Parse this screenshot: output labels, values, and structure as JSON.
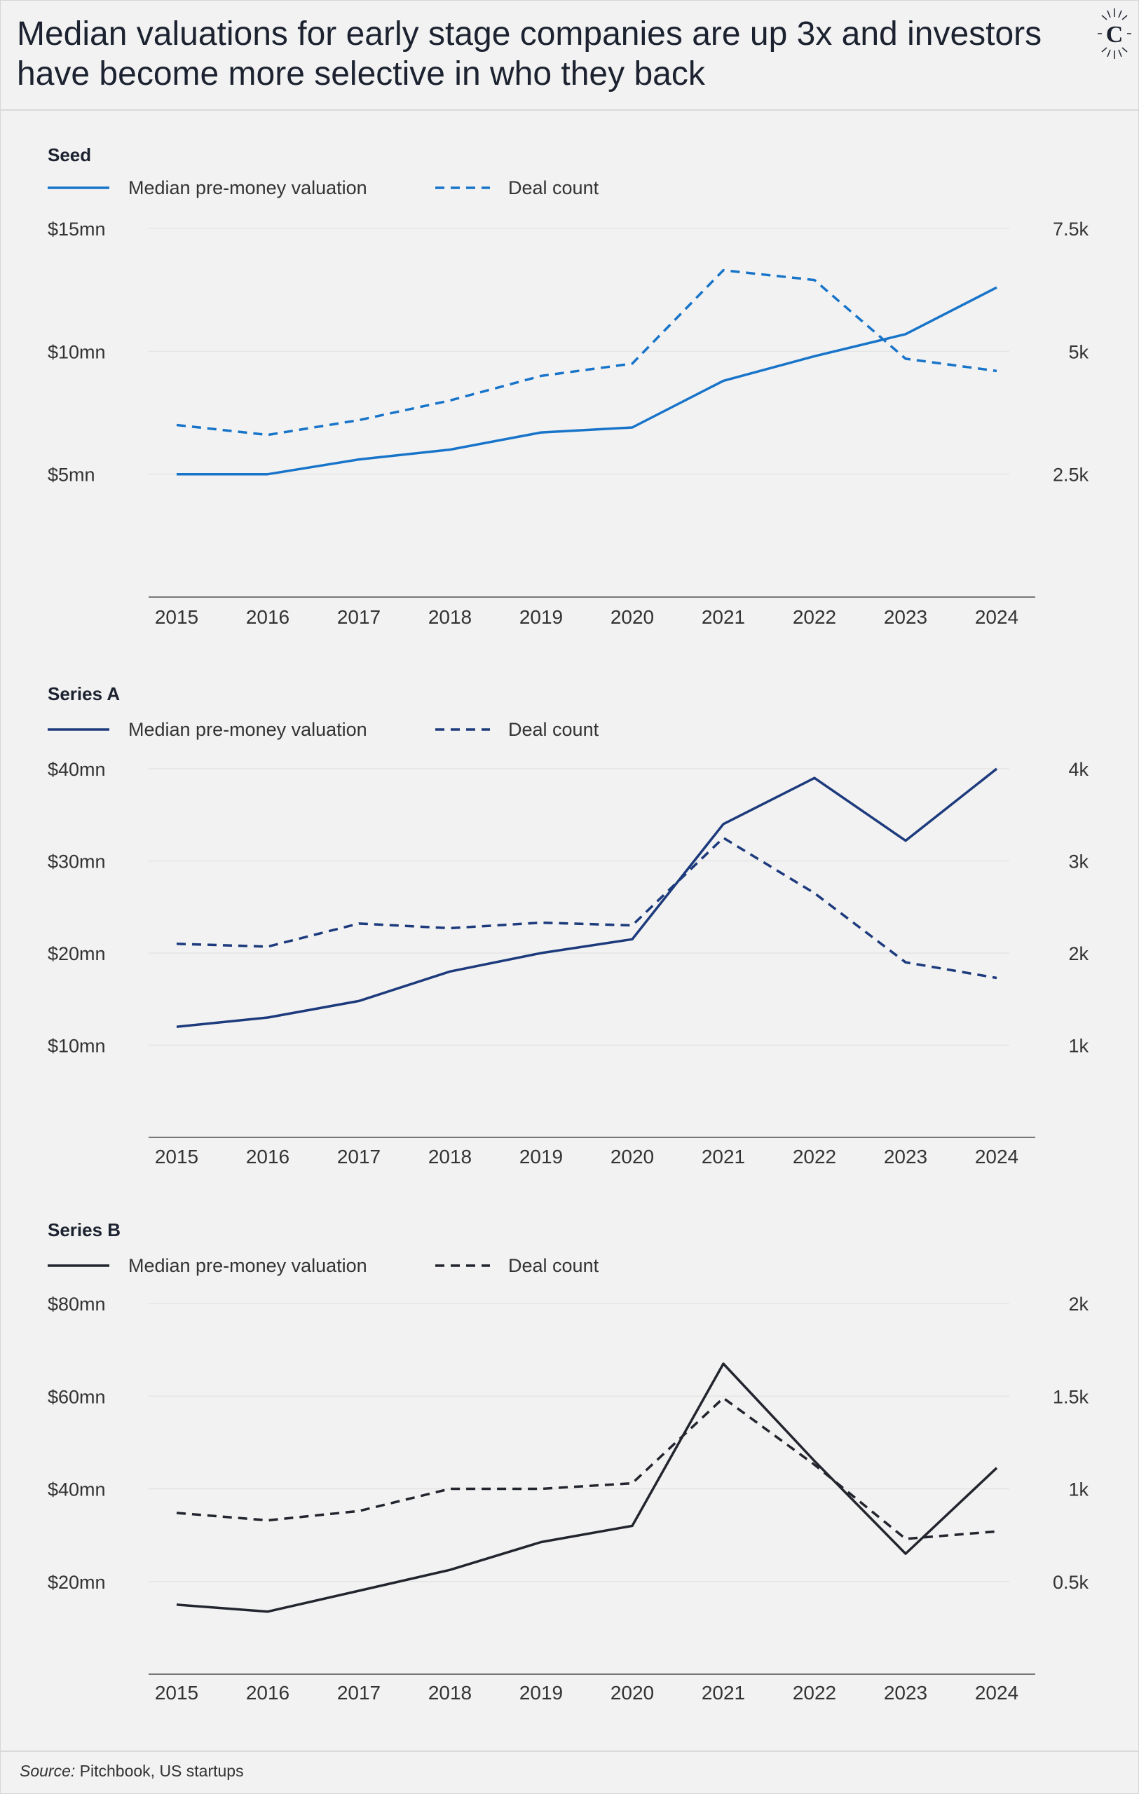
{
  "title": "Median valuations for early stage companies are up 3x and investors have become more selective in who they back",
  "source_label": "Source:",
  "source_text": " Pitchbook, US startups",
  "logo_letter": "C",
  "chart_data": [
    {
      "type": "line",
      "title": "Seed",
      "color": "#1874c9",
      "categories": [
        "2015",
        "2016",
        "2017",
        "2018",
        "2019",
        "2020",
        "2021",
        "2022",
        "2023",
        "2024"
      ],
      "legend": [
        "Median pre-money valuation",
        "Deal count"
      ],
      "y_left": {
        "min": 0,
        "max": 15,
        "ticks": [
          5,
          10,
          15
        ],
        "tick_labels": [
          "$5mn",
          "$10mn",
          "$15mn"
        ]
      },
      "y_right": {
        "min": 0,
        "max": 7500,
        "ticks": [
          2500,
          5000,
          7500
        ],
        "tick_labels": [
          "2.5k",
          "5k",
          "7.5k"
        ]
      },
      "series": [
        {
          "name": "Median pre-money valuation",
          "axis": "left",
          "style": "solid",
          "values": [
            5.0,
            5.0,
            5.6,
            6.0,
            6.7,
            6.9,
            8.8,
            9.8,
            10.7,
            12.6
          ]
        },
        {
          "name": "Deal count",
          "axis": "right",
          "style": "dashed",
          "values": [
            3500,
            3300,
            3600,
            4000,
            4500,
            4750,
            6650,
            6450,
            4850,
            4600
          ]
        }
      ]
    },
    {
      "type": "line",
      "title": "Series A",
      "color": "#1c3a7c",
      "categories": [
        "2015",
        "2016",
        "2017",
        "2018",
        "2019",
        "2020",
        "2021",
        "2022",
        "2023",
        "2024"
      ],
      "legend": [
        "Median pre-money valuation",
        "Deal count"
      ],
      "y_left": {
        "min": 0,
        "max": 40,
        "ticks": [
          10,
          20,
          30,
          40
        ],
        "tick_labels": [
          "$10mn",
          "$20mn",
          "$30mn",
          "$40mn"
        ]
      },
      "y_right": {
        "min": 0,
        "max": 4000,
        "ticks": [
          1000,
          2000,
          3000,
          4000
        ],
        "tick_labels": [
          "1k",
          "2k",
          "3k",
          "4k"
        ]
      },
      "series": [
        {
          "name": "Median pre-money valuation",
          "axis": "left",
          "style": "solid",
          "values": [
            12.0,
            13.0,
            14.8,
            18.0,
            20.0,
            21.5,
            34.0,
            39.0,
            32.2,
            40.0
          ]
        },
        {
          "name": "Deal count",
          "axis": "right",
          "style": "dashed",
          "values": [
            2100,
            2070,
            2320,
            2270,
            2330,
            2300,
            3250,
            2650,
            1900,
            1730
          ]
        }
      ]
    },
    {
      "type": "line",
      "title": "Series B",
      "color": "#23252e",
      "categories": [
        "2015",
        "2016",
        "2017",
        "2018",
        "2019",
        "2020",
        "2021",
        "2022",
        "2023",
        "2024"
      ],
      "legend": [
        "Median pre-money valuation",
        "Deal count"
      ],
      "y_left": {
        "min": 0,
        "max": 80,
        "ticks": [
          20,
          40,
          60,
          80
        ],
        "tick_labels": [
          "$20mn",
          "$40mn",
          "$60mn",
          "$80mn"
        ]
      },
      "y_right": {
        "min": 0,
        "max": 2000,
        "ticks": [
          500,
          1000,
          1500,
          2000
        ],
        "tick_labels": [
          "0.5k",
          "1k",
          "1.5k",
          "2k"
        ]
      },
      "series": [
        {
          "name": "Median pre-money valuation",
          "axis": "left",
          "style": "solid",
          "values": [
            15.0,
            13.5,
            18.0,
            22.5,
            28.5,
            32.0,
            67.0,
            46.0,
            26.0,
            44.5
          ]
        },
        {
          "name": "Deal count",
          "axis": "right",
          "style": "dashed",
          "values": [
            870,
            830,
            880,
            1000,
            1000,
            1030,
            1490,
            1130,
            730,
            770
          ]
        }
      ]
    }
  ]
}
